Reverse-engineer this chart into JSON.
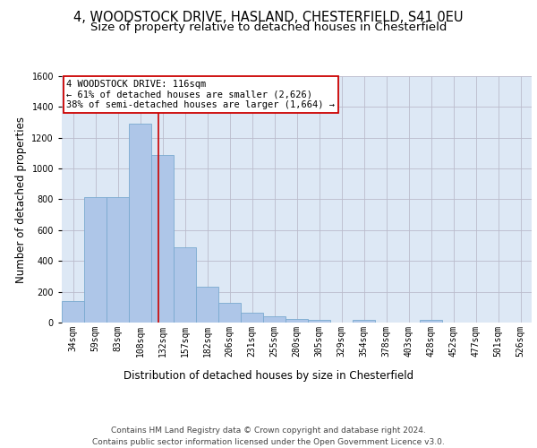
{
  "title": "4, WOODSTOCK DRIVE, HASLAND, CHESTERFIELD, S41 0EU",
  "subtitle": "Size of property relative to detached houses in Chesterfield",
  "xlabel": "Distribution of detached houses by size in Chesterfield",
  "ylabel": "Number of detached properties",
  "bar_values": [
    140,
    815,
    815,
    1290,
    1090,
    490,
    230,
    130,
    65,
    40,
    25,
    15,
    0,
    15,
    0,
    0,
    15,
    0,
    0,
    0,
    0
  ],
  "bar_labels": [
    "34sqm",
    "59sqm",
    "83sqm",
    "108sqm",
    "132sqm",
    "157sqm",
    "182sqm",
    "206sqm",
    "231sqm",
    "255sqm",
    "280sqm",
    "305sqm",
    "329sqm",
    "354sqm",
    "378sqm",
    "403sqm",
    "428sqm",
    "452sqm",
    "477sqm",
    "501sqm",
    "526sqm"
  ],
  "bar_color": "#aec6e8",
  "bar_edgecolor": "#7aaad0",
  "bar_linewidth": 0.6,
  "grid_color": "#bbbbcc",
  "background_color": "#dde8f5",
  "red_line_x": 3.83,
  "red_line_color": "#cc0000",
  "annotation_text": "4 WOODSTOCK DRIVE: 116sqm\n← 61% of detached houses are smaller (2,626)\n38% of semi-detached houses are larger (1,664) →",
  "annotation_box_color": "#ffffff",
  "annotation_box_edgecolor": "#cc0000",
  "ylim": [
    0,
    1600
  ],
  "yticks": [
    0,
    200,
    400,
    600,
    800,
    1000,
    1200,
    1400,
    1600
  ],
  "footer_line1": "Contains HM Land Registry data © Crown copyright and database right 2024.",
  "footer_line2": "Contains public sector information licensed under the Open Government Licence v3.0.",
  "title_fontsize": 10.5,
  "subtitle_fontsize": 9.5,
  "xlabel_fontsize": 8.5,
  "ylabel_fontsize": 8.5,
  "tick_fontsize": 7,
  "annotation_fontsize": 7.5,
  "footer_fontsize": 6.5
}
